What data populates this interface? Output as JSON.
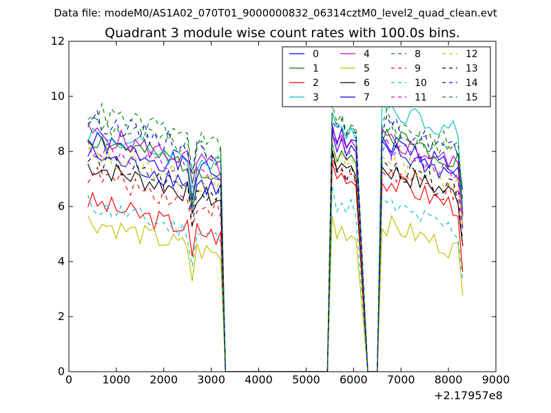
{
  "figure": {
    "suptitle": "Data file: modeM0/AS1A02_070T01_9000000832_06314cztM0_level2_quad_clean.evt"
  },
  "chart_data": {
    "type": "line",
    "title": "Quadrant 3 module wise count rates with 100.0s bins.",
    "xlabel": "",
    "ylabel": "",
    "x_offset_label": "+2.17957e8",
    "xlim": [
      0,
      9000
    ],
    "ylim": [
      0,
      12
    ],
    "x_ticks": [
      "0",
      "1000",
      "2000",
      "3000",
      "4000",
      "5000",
      "6000",
      "7000",
      "8000",
      "9000"
    ],
    "y_ticks": [
      "0",
      "2",
      "4",
      "6",
      "8",
      "10",
      "12"
    ],
    "grid": false,
    "legend_position": "top-right",
    "legend_columns": 4,
    "series": [
      {
        "name": "0",
        "color": "#0000ff",
        "dash": "solid",
        "base": 7.8,
        "peak1": 9.0,
        "peak2": 8.4
      },
      {
        "name": "1",
        "color": "#008000",
        "dash": "solid",
        "base": 7.9,
        "peak1": 8.3,
        "peak2": 8.7
      },
      {
        "name": "2",
        "color": "#ff0000",
        "dash": "solid",
        "base": 5.6,
        "peak1": 7.6,
        "peak2": 7.0
      },
      {
        "name": "3",
        "color": "#00bfbf",
        "dash": "solid",
        "base": 8.1,
        "peak1": 9.4,
        "peak2": 9.7
      },
      {
        "name": "4",
        "color": "#bf00bf",
        "dash": "solid",
        "base": 8.1,
        "peak1": 8.8,
        "peak2": 8.5
      },
      {
        "name": "5",
        "color": "#bfbf00",
        "dash": "solid",
        "base": 4.9,
        "peak1": 5.6,
        "peak2": 5.4
      },
      {
        "name": "6",
        "color": "#000000",
        "dash": "solid",
        "base": 6.9,
        "peak1": 8.0,
        "peak2": 7.4
      },
      {
        "name": "7",
        "color": "#0000ff",
        "dash": "solid",
        "base": 7.3,
        "peak1": 8.6,
        "peak2": 8.1
      },
      {
        "name": "8",
        "color": "#008000",
        "dash": "dashed",
        "base": 8.5,
        "peak1": 9.6,
        "peak2": 9.2
      },
      {
        "name": "9",
        "color": "#ff0000",
        "dash": "dashed",
        "base": 6.6,
        "peak1": 7.7,
        "peak2": 7.3
      },
      {
        "name": "10",
        "color": "#00bfbf",
        "dash": "dashed",
        "base": 5.5,
        "peak1": 6.6,
        "peak2": 6.1
      },
      {
        "name": "11",
        "color": "#bf00bf",
        "dash": "dashed",
        "base": 7.6,
        "peak1": 8.7,
        "peak2": 8.2
      },
      {
        "name": "12",
        "color": "#bfbf00",
        "dash": "dashed",
        "base": 7.4,
        "peak1": 8.2,
        "peak2": 7.9
      },
      {
        "name": "13",
        "color": "#000000",
        "dash": "dashed",
        "base": 7.1,
        "peak1": 7.8,
        "peak2": 7.5
      },
      {
        "name": "14",
        "color": "#0000ff",
        "dash": "dashed",
        "base": 8.6,
        "peak1": 9.3,
        "peak2": 9.0
      },
      {
        "name": "15",
        "color": "#008000",
        "dash": "dashed",
        "base": 8.9,
        "peak1": 9.4,
        "peak2": 8.9
      }
    ]
  }
}
